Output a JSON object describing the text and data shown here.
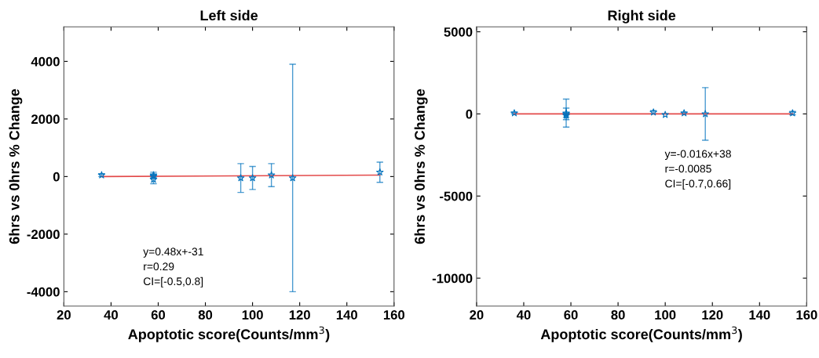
{
  "chart_data": [
    {
      "type": "scatter",
      "title": "Left side",
      "xlabel": "Apoptotic score(Counts/mm$^{3}$)",
      "ylabel": "6hrs vs 0hrs % Change",
      "xlim": [
        20,
        160
      ],
      "xticks": [
        20,
        40,
        60,
        80,
        100,
        120,
        140,
        160
      ],
      "ylim": [
        -4500,
        5200
      ],
      "yticks": [
        -4000,
        -2000,
        0,
        2000,
        4000
      ],
      "annotations": [
        "y=0.48x+-31\nr=0.29\nCI=[-0.5,0.8]"
      ],
      "series": [
        {
          "marker": "star",
          "color": "#0072bd",
          "x": [
            36,
            58,
            58,
            58,
            95,
            100,
            108,
            117,
            154
          ],
          "values": [
            50,
            50,
            0,
            -100,
            -50,
            -50,
            50,
            -50,
            150
          ],
          "errors": [
            50,
            100,
            50,
            150,
            500,
            400,
            400,
            3950,
            350
          ]
        },
        {
          "type": "line",
          "marker": "none",
          "color": "#e34a4a",
          "x": [
            36,
            154
          ],
          "values": [
            0,
            50
          ]
        }
      ]
    },
    {
      "type": "scatter",
      "title": "Right side",
      "xlabel": "Apoptotic score(Counts/mm$^{3}$)",
      "ylabel": "6hrs vs 0hrs % Change",
      "xlim": [
        20,
        160
      ],
      "xticks": [
        20,
        40,
        60,
        80,
        100,
        120,
        140,
        160
      ],
      "ylim": [
        -11700,
        5300
      ],
      "yticks": [
        -10000,
        -5000,
        0,
        5000
      ],
      "annotations": [
        "y=-0.016x+38\nr=-0.0085\nCI=[-0.7,0.66]"
      ],
      "series": [
        {
          "marker": "star",
          "color": "#0072bd",
          "x": [
            36,
            58,
            58,
            58,
            95,
            100,
            108,
            117,
            154
          ],
          "values": [
            50,
            50,
            0,
            -100,
            100,
            -50,
            50,
            0,
            50
          ],
          "errors": [
            50,
            850,
            350,
            100,
            100,
            null,
            50,
            1600,
            100
          ]
        },
        {
          "type": "line",
          "marker": "none",
          "color": "#e34a4a",
          "x": [
            36,
            154
          ],
          "values": [
            0,
            0
          ]
        }
      ]
    }
  ]
}
